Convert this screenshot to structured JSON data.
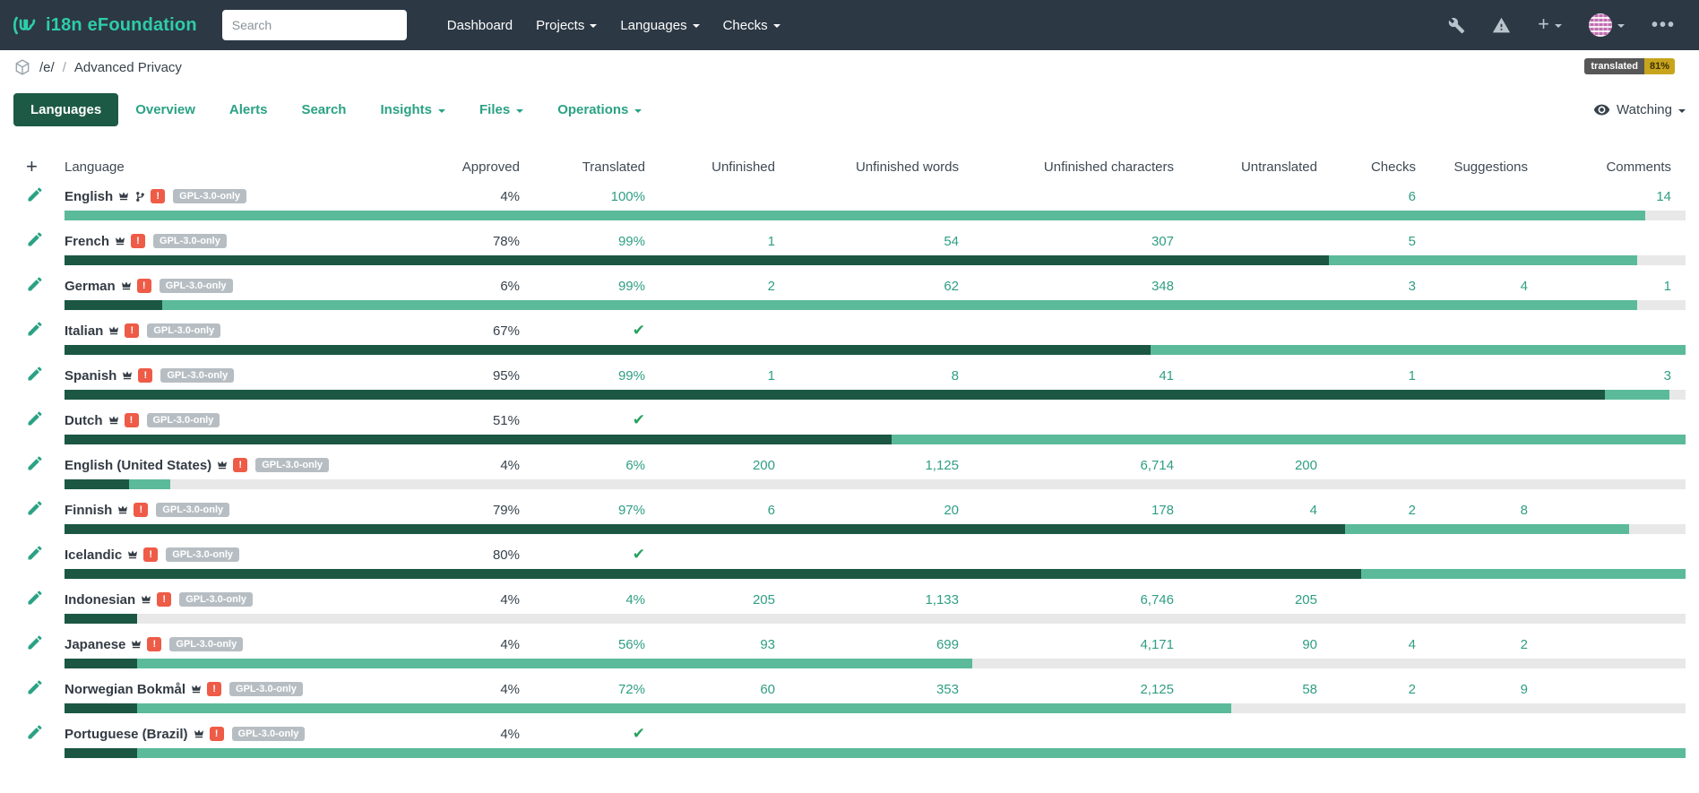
{
  "navbar": {
    "brand": "i18n eFoundation",
    "search_placeholder": "Search",
    "items": [
      {
        "label": "Dashboard",
        "dropdown": false
      },
      {
        "label": "Projects",
        "dropdown": true
      },
      {
        "label": "Languages",
        "dropdown": true
      },
      {
        "label": "Checks",
        "dropdown": true
      }
    ],
    "icons": [
      "wrench-icon",
      "alert-triangle-icon",
      "plus-icon",
      "avatar",
      "ellipsis-icon"
    ]
  },
  "breadcrumb": {
    "icon": "project-cube-icon",
    "project": "/e/",
    "separator": "/",
    "component": "Advanced Privacy"
  },
  "status_badge": {
    "label": "translated",
    "value": "81%"
  },
  "tabs": [
    {
      "label": "Languages",
      "active": true,
      "dropdown": false
    },
    {
      "label": "Overview",
      "active": false,
      "dropdown": false
    },
    {
      "label": "Alerts",
      "active": false,
      "dropdown": false
    },
    {
      "label": "Search",
      "active": false,
      "dropdown": false
    },
    {
      "label": "Insights",
      "active": false,
      "dropdown": true
    },
    {
      "label": "Files",
      "active": false,
      "dropdown": true
    },
    {
      "label": "Operations",
      "active": false,
      "dropdown": true
    }
  ],
  "watch": {
    "label": "Watching",
    "icon": "eye-icon"
  },
  "table": {
    "headers": [
      "Language",
      "Approved",
      "Translated",
      "Unfinished",
      "Unfinished words",
      "Unfinished characters",
      "Untranslated",
      "Checks",
      "Suggestions",
      "Comments"
    ],
    "license_badge": "GPL-3.0-only",
    "rows": [
      {
        "language": "English",
        "source": true,
        "approved": "4%",
        "translated": "100%",
        "check": false,
        "unfinished": "",
        "unfinished_words": "",
        "unfinished_characters": "",
        "untranslated": "",
        "checks": "6",
        "suggestions": "",
        "comments": "14",
        "bar": {
          "dark": 0,
          "medium": 97.5
        }
      },
      {
        "language": "French",
        "source": false,
        "approved": "78%",
        "translated": "99%",
        "check": false,
        "unfinished": "1",
        "unfinished_words": "54",
        "unfinished_characters": "307",
        "untranslated": "",
        "checks": "5",
        "suggestions": "",
        "comments": "",
        "bar": {
          "dark": 78,
          "medium": 19
        }
      },
      {
        "language": "German",
        "source": false,
        "approved": "6%",
        "translated": "99%",
        "check": false,
        "unfinished": "2",
        "unfinished_words": "62",
        "unfinished_characters": "348",
        "untranslated": "",
        "checks": "3",
        "suggestions": "4",
        "comments": "1",
        "bar": {
          "dark": 6,
          "medium": 91
        }
      },
      {
        "language": "Italian",
        "source": false,
        "approved": "67%",
        "translated": "",
        "check": true,
        "unfinished": "",
        "unfinished_words": "",
        "unfinished_characters": "",
        "untranslated": "",
        "checks": "",
        "suggestions": "",
        "comments": "",
        "bar": {
          "dark": 67,
          "medium": 33
        }
      },
      {
        "language": "Spanish",
        "source": false,
        "approved": "95%",
        "translated": "99%",
        "check": false,
        "unfinished": "1",
        "unfinished_words": "8",
        "unfinished_characters": "41",
        "untranslated": "",
        "checks": "1",
        "suggestions": "",
        "comments": "3",
        "bar": {
          "dark": 95,
          "medium": 4
        }
      },
      {
        "language": "Dutch",
        "source": false,
        "approved": "51%",
        "translated": "",
        "check": true,
        "unfinished": "",
        "unfinished_words": "",
        "unfinished_characters": "",
        "untranslated": "",
        "checks": "",
        "suggestions": "",
        "comments": "",
        "bar": {
          "dark": 51,
          "medium": 49
        }
      },
      {
        "language": "English (United States)",
        "source": false,
        "approved": "4%",
        "translated": "6%",
        "check": false,
        "unfinished": "200",
        "unfinished_words": "1,125",
        "unfinished_characters": "6,714",
        "untranslated": "200",
        "checks": "",
        "suggestions": "",
        "comments": "",
        "bar": {
          "dark": 4,
          "medium": 2.5
        }
      },
      {
        "language": "Finnish",
        "source": false,
        "approved": "79%",
        "translated": "97%",
        "check": false,
        "unfinished": "6",
        "unfinished_words": "20",
        "unfinished_characters": "178",
        "untranslated": "4",
        "checks": "2",
        "suggestions": "8",
        "comments": "",
        "bar": {
          "dark": 79,
          "medium": 17.5
        }
      },
      {
        "language": "Icelandic",
        "source": false,
        "approved": "80%",
        "translated": "",
        "check": true,
        "unfinished": "",
        "unfinished_words": "",
        "unfinished_characters": "",
        "untranslated": "",
        "checks": "",
        "suggestions": "",
        "comments": "",
        "bar": {
          "dark": 80,
          "medium": 20
        }
      },
      {
        "language": "Indonesian",
        "source": false,
        "approved": "4%",
        "translated": "4%",
        "check": false,
        "unfinished": "205",
        "unfinished_words": "1,133",
        "unfinished_characters": "6,746",
        "untranslated": "205",
        "checks": "",
        "suggestions": "",
        "comments": "",
        "bar": {
          "dark": 4.5,
          "medium": 0
        }
      },
      {
        "language": "Japanese",
        "source": false,
        "approved": "4%",
        "translated": "56%",
        "check": false,
        "unfinished": "93",
        "unfinished_words": "699",
        "unfinished_characters": "4,171",
        "untranslated": "90",
        "checks": "4",
        "suggestions": "2",
        "comments": "",
        "bar": {
          "dark": 4.5,
          "medium": 51.5
        }
      },
      {
        "language": "Norwegian Bokmål",
        "source": false,
        "approved": "4%",
        "translated": "72%",
        "check": false,
        "unfinished": "60",
        "unfinished_words": "353",
        "unfinished_characters": "2,125",
        "untranslated": "58",
        "checks": "2",
        "suggestions": "9",
        "comments": "",
        "bar": {
          "dark": 4.5,
          "medium": 67.5
        }
      },
      {
        "language": "Portuguese (Brazil)",
        "source": false,
        "approved": "4%",
        "translated": "",
        "check": true,
        "unfinished": "",
        "unfinished_words": "",
        "unfinished_characters": "",
        "untranslated": "",
        "checks": "",
        "suggestions": "",
        "comments": "",
        "bar": {
          "dark": 4.5,
          "medium": 95.5
        }
      }
    ]
  },
  "colors": {
    "navbar_bg": "#2c3844",
    "brand": "#2eccaa",
    "tab_active_bg": "#1d5a46",
    "link_teal": "#2f9e83",
    "bar_approved": "#1b5742",
    "bar_translated": "#5bba9a",
    "bar_track": "#e8e8e8",
    "alert_badge": "#ee5b47",
    "license_badge": "#b7bec3",
    "status_label_bg": "#575757",
    "status_value_bg": "#c7a41c"
  }
}
